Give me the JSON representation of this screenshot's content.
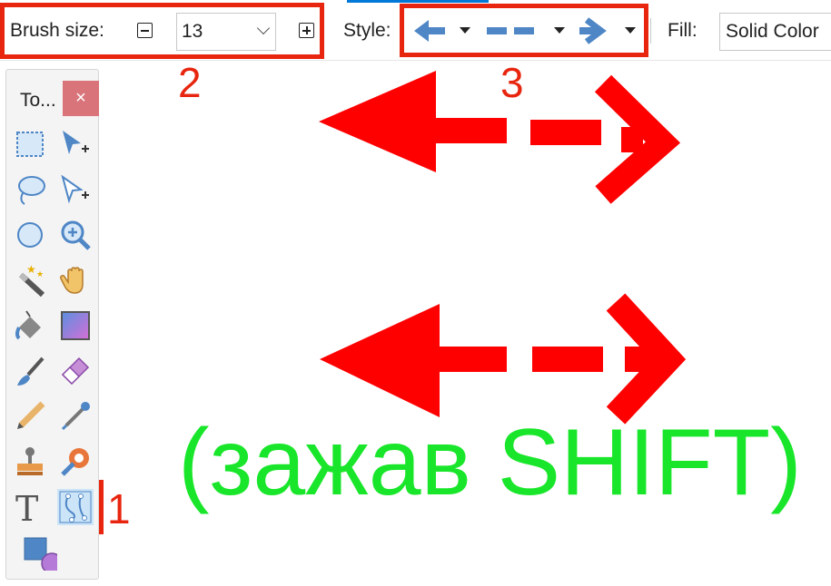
{
  "toolbar": {
    "brush_label": "Brush size:",
    "brush_value": "13",
    "style_label": "Style:",
    "fill_label": "Fill:",
    "fill_value": "Solid Color"
  },
  "palette": {
    "title": "To...",
    "close": "×",
    "tools": [
      "rectangle-select",
      "move-selection",
      "lasso-select",
      "move-selected",
      "ellipse-select",
      "zoom",
      "magic-wand",
      "pan",
      "paint-bucket",
      "gradient",
      "paintbrush",
      "eraser",
      "pencil",
      "color-picker",
      "clone-stamp",
      "recolor",
      "text",
      "line-curve",
      "shapes"
    ]
  },
  "annotations": {
    "n1": "1",
    "n2": "2",
    "n3": "3",
    "caption": "(зажав SHIFT)"
  },
  "colors": {
    "annotation_red": "#e8260f",
    "arrow_red": "#ff0000",
    "caption_green": "#19e62a",
    "style_icon_blue": "#4e86c6"
  }
}
